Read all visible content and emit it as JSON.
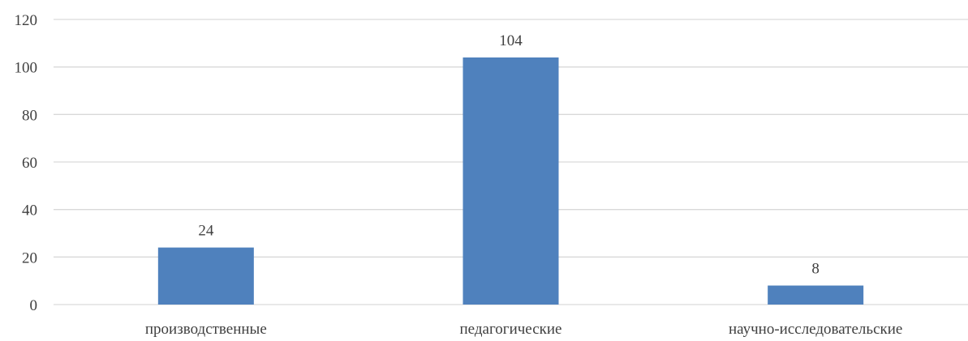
{
  "chart_data": {
    "type": "bar",
    "title": "",
    "xlabel": "",
    "ylabel": "",
    "categories": [
      "производственные",
      "педагогические",
      "научно-исследовательские"
    ],
    "values": [
      24,
      104,
      8
    ],
    "ylim": [
      0,
      120
    ],
    "yticks": [
      "0",
      "20",
      "40",
      "60",
      "80",
      "100",
      "120"
    ],
    "data_labels": [
      "24",
      "104",
      "8"
    ],
    "grid": true,
    "legend": "none",
    "colors": {
      "bar": "#4F81BD",
      "grid": "#D9D9D9",
      "axis": "#D9D9D9",
      "text": "#404040"
    }
  }
}
